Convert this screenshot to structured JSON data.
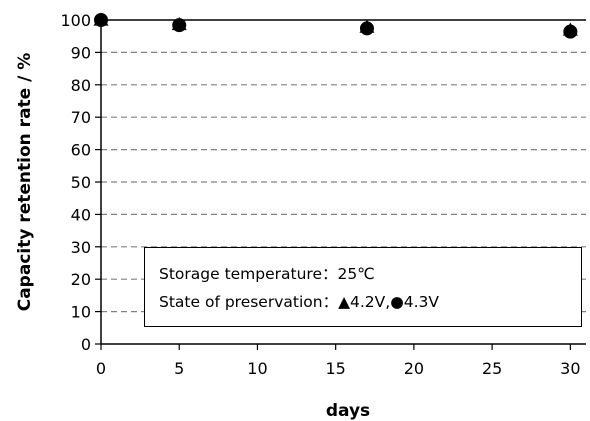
{
  "chart_data": {
    "type": "scatter",
    "xlabel": "days",
    "ylabel": "Capacity retention rate / %",
    "xlim": [
      0,
      31
    ],
    "ylim": [
      0,
      100
    ],
    "x_ticks": [
      "0",
      "5",
      "10",
      "15",
      "20",
      "25",
      "30"
    ],
    "y_ticks": [
      "0",
      "10",
      "20",
      "30",
      "40",
      "50",
      "60",
      "70",
      "80",
      "90",
      "100"
    ],
    "grid": "horizontal-dashed",
    "series": [
      {
        "marker": "triangle",
        "color": "#000000",
        "x": [
          0,
          5,
          17,
          30
        ],
        "y": [
          100,
          98.6,
          97.8,
          96.9
        ]
      },
      {
        "marker": "circle",
        "color": "#000000",
        "x": [
          0,
          5,
          17,
          30
        ],
        "y": [
          100,
          98.4,
          97.4,
          96.4
        ]
      }
    ],
    "annotation": {
      "line1": "Storage temperature：25℃",
      "line2_prefix": "State of preservation：",
      "line2_series1": "4.2V",
      "line2_sep": ",",
      "line2_series2": "4.3V",
      "placement": "lower-right"
    }
  }
}
